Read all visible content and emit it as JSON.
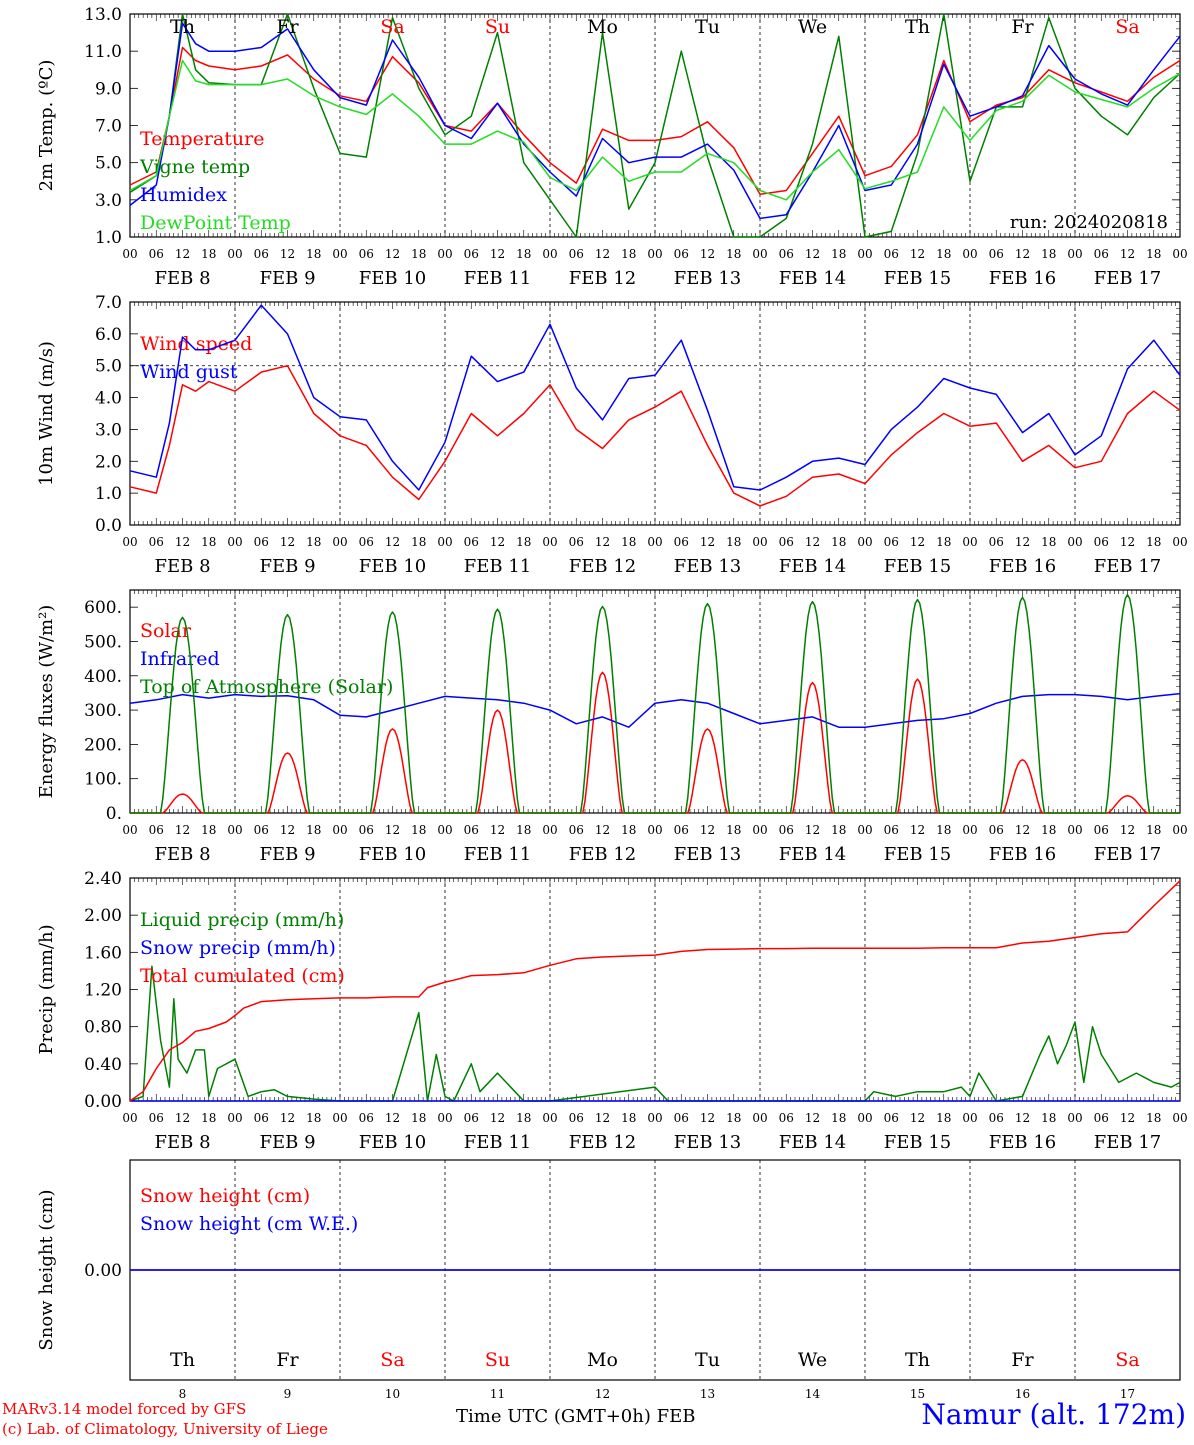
{
  "meta": {
    "run_label": "run: 2024020818"
  },
  "colors": {
    "red": "#ff0000",
    "green": "#008000",
    "blue": "#0000ff",
    "lightgreen": "#22dd22",
    "purple": "#800080",
    "axis": "#000000"
  },
  "days": [
    {
      "abbr": "Th",
      "weekend": false,
      "date": "FEB  8",
      "num": "8"
    },
    {
      "abbr": "Fr",
      "weekend": false,
      "date": "FEB  9",
      "num": "9"
    },
    {
      "abbr": "Sa",
      "weekend": true,
      "date": "FEB 10",
      "num": "10"
    },
    {
      "abbr": "Su",
      "weekend": true,
      "date": "FEB 11",
      "num": "11"
    },
    {
      "abbr": "Mo",
      "weekend": false,
      "date": "FEB 12",
      "num": "12"
    },
    {
      "abbr": "Tu",
      "weekend": false,
      "date": "FEB 13",
      "num": "13"
    },
    {
      "abbr": "We",
      "weekend": false,
      "date": "FEB 14",
      "num": "14"
    },
    {
      "abbr": "Th",
      "weekend": false,
      "date": "FEB 15",
      "num": "15"
    },
    {
      "abbr": "Fr",
      "weekend": false,
      "date": "FEB 16",
      "num": "16"
    },
    {
      "abbr": "Sa",
      "weekend": true,
      "date": "FEB 17",
      "num": "17"
    }
  ],
  "hour_labels": [
    "00",
    "06",
    "12",
    "18"
  ],
  "footer": {
    "credit_line1": "MARv3.14 model forced by GFS",
    "credit_line2": "(c) Lab. of Climatology, University of Liege",
    "x_title": "Time UTC (GMT+0h) FEB",
    "station": "Namur (alt. 172m)"
  },
  "chart_data": [
    {
      "type": "line",
      "ylabel": "2m Temp. (ºC)",
      "ylim": [
        1,
        13
      ],
      "yticks": [
        "1.0",
        "3.0",
        "5.0",
        "7.0",
        "9.0",
        "11.0",
        "13.0"
      ],
      "x_unit": "hours since FEB 8 00 UTC",
      "series": [
        {
          "name": "Temperature",
          "color": "red",
          "x": [
            0,
            6,
            9,
            12,
            15,
            18,
            24,
            30,
            36,
            42,
            48,
            54,
            60,
            66,
            72,
            78,
            84,
            90,
            96,
            102,
            108,
            114,
            120,
            126,
            132,
            138,
            144,
            150,
            156,
            162,
            168,
            174,
            180,
            186,
            192,
            198,
            204,
            210,
            216,
            222,
            228,
            234,
            240
          ],
          "values": [
            3.8,
            4.5,
            7.5,
            11.2,
            10.5,
            10.2,
            10.0,
            10.2,
            10.8,
            9.5,
            8.6,
            8.3,
            10.7,
            9.3,
            7.0,
            6.7,
            8.2,
            6.5,
            5.0,
            3.9,
            6.8,
            6.2,
            6.2,
            6.4,
            7.2,
            5.8,
            3.3,
            3.5,
            5.5,
            7.5,
            4.3,
            4.8,
            6.5,
            10.5,
            7.2,
            8.1,
            8.5,
            10.0,
            9.3,
            8.8,
            8.3,
            9.6,
            10.5
          ]
        },
        {
          "name": "Vigne temp",
          "color": "green",
          "x": [
            0,
            6,
            9,
            12,
            15,
            18,
            24,
            30,
            36,
            42,
            48,
            54,
            60,
            66,
            72,
            78,
            84,
            90,
            96,
            102,
            108,
            114,
            120,
            126,
            132,
            138,
            144,
            150,
            156,
            162,
            168,
            174,
            180,
            186,
            192,
            198,
            204,
            210,
            216,
            222,
            228,
            234,
            240
          ],
          "values": [
            3.4,
            4.3,
            7.5,
            13.0,
            10.0,
            9.3,
            9.2,
            9.2,
            13.0,
            9.0,
            5.5,
            5.3,
            12.8,
            9.0,
            6.5,
            7.5,
            12.0,
            5.0,
            3.0,
            1.0,
            12.0,
            2.5,
            5.0,
            11.0,
            5.3,
            1.0,
            1.0,
            2.0,
            6.0,
            11.8,
            1.0,
            1.3,
            5.5,
            13.0,
            4.0,
            8.0,
            8.0,
            12.8,
            9.0,
            7.5,
            6.5,
            8.5,
            9.8
          ]
        },
        {
          "name": "Humidex",
          "color": "blue",
          "x": [
            0,
            6,
            9,
            12,
            15,
            18,
            24,
            30,
            36,
            42,
            48,
            54,
            60,
            66,
            72,
            78,
            84,
            90,
            96,
            102,
            108,
            114,
            120,
            126,
            132,
            138,
            144,
            150,
            156,
            162,
            168,
            174,
            180,
            186,
            192,
            198,
            204,
            210,
            216,
            222,
            228,
            234,
            240
          ],
          "values": [
            2.7,
            3.8,
            7.5,
            12.5,
            11.4,
            11.0,
            11.0,
            11.2,
            12.2,
            10.0,
            8.5,
            8.1,
            11.6,
            9.6,
            7.0,
            6.3,
            8.2,
            6.0,
            4.5,
            3.2,
            6.3,
            5.0,
            5.3,
            5.3,
            6.0,
            4.6,
            2.0,
            2.2,
            4.5,
            7.0,
            3.5,
            3.8,
            6.0,
            10.3,
            7.5,
            8.0,
            8.6,
            11.3,
            9.5,
            8.7,
            8.1,
            10.0,
            11.8
          ]
        },
        {
          "name": "DewPoint Temp",
          "color": "lightgreen",
          "x": [
            0,
            6,
            9,
            12,
            15,
            18,
            24,
            30,
            36,
            42,
            48,
            54,
            60,
            66,
            72,
            78,
            84,
            90,
            96,
            102,
            108,
            114,
            120,
            126,
            132,
            138,
            144,
            150,
            156,
            162,
            168,
            174,
            180,
            186,
            192,
            198,
            204,
            210,
            216,
            222,
            228,
            234,
            240
          ],
          "values": [
            3.5,
            4.3,
            7.5,
            10.5,
            9.4,
            9.2,
            9.2,
            9.2,
            9.5,
            8.6,
            8.0,
            7.6,
            8.7,
            7.5,
            6.0,
            6.0,
            6.7,
            6.1,
            4.2,
            3.5,
            5.3,
            4.0,
            4.5,
            4.5,
            5.5,
            5.0,
            3.5,
            3.0,
            4.5,
            5.7,
            3.6,
            4.0,
            4.5,
            8.0,
            6.2,
            7.8,
            8.3,
            9.7,
            8.8,
            8.4,
            8.0,
            9.0,
            9.8
          ]
        }
      ]
    },
    {
      "type": "line",
      "ylabel": "10m Wind (m/s)",
      "ylim": [
        0,
        7
      ],
      "yticks": [
        "0.0",
        "1.0",
        "2.0",
        "3.0",
        "4.0",
        "5.0",
        "6.0",
        "7.0"
      ],
      "ref_line": 5,
      "x_unit": "hours since FEB 8 00 UTC",
      "series": [
        {
          "name": "Wind speed",
          "color": "red",
          "x": [
            0,
            6,
            9,
            12,
            15,
            18,
            24,
            30,
            36,
            42,
            48,
            54,
            60,
            66,
            72,
            78,
            84,
            90,
            96,
            102,
            108,
            114,
            120,
            126,
            132,
            138,
            144,
            150,
            156,
            162,
            168,
            174,
            180,
            186,
            192,
            198,
            204,
            210,
            216,
            222,
            228,
            234,
            240
          ],
          "values": [
            1.2,
            1.0,
            2.5,
            4.4,
            4.2,
            4.5,
            4.2,
            4.8,
            5.0,
            3.5,
            2.8,
            2.5,
            1.5,
            0.8,
            2.0,
            3.5,
            2.8,
            3.5,
            4.4,
            3.0,
            2.4,
            3.3,
            3.7,
            4.2,
            2.5,
            1.0,
            0.6,
            0.9,
            1.5,
            1.6,
            1.3,
            2.2,
            2.9,
            3.5,
            3.1,
            3.2,
            2.0,
            2.5,
            1.8,
            2.0,
            3.5,
            4.2,
            3.6
          ]
        },
        {
          "name": "Wind gust",
          "color": "blue",
          "x": [
            0,
            6,
            9,
            12,
            15,
            18,
            24,
            30,
            36,
            42,
            48,
            54,
            60,
            66,
            72,
            78,
            84,
            90,
            96,
            102,
            108,
            114,
            120,
            126,
            132,
            138,
            144,
            150,
            156,
            162,
            168,
            174,
            180,
            186,
            192,
            198,
            204,
            210,
            216,
            222,
            228,
            234,
            240
          ],
          "values": [
            1.7,
            1.5,
            3.2,
            5.9,
            5.5,
            5.5,
            5.8,
            6.9,
            6.0,
            4.0,
            3.4,
            3.3,
            2.0,
            1.1,
            2.6,
            5.3,
            4.5,
            4.8,
            6.3,
            4.3,
            3.3,
            4.6,
            4.7,
            5.8,
            3.6,
            1.2,
            1.1,
            1.5,
            2.0,
            2.1,
            1.9,
            3.0,
            3.7,
            4.6,
            4.3,
            4.1,
            2.9,
            3.5,
            2.2,
            2.8,
            4.9,
            5.8,
            4.7
          ]
        }
      ]
    },
    {
      "type": "line",
      "ylabel": "Energy fluxes (W/m²)",
      "ylim": [
        0,
        650
      ],
      "yticks": [
        "0.",
        "100.",
        "200.",
        "300.",
        "400.",
        "500.",
        "600."
      ],
      "x_unit": "hours since FEB 8 00 UTC",
      "series": [
        {
          "name": "Solar",
          "color": "red",
          "day_peaks": [
            55,
            175,
            245,
            300,
            410,
            245,
            380,
            390,
            155,
            50
          ]
        },
        {
          "name": "Infrared",
          "color": "blue",
          "x": [
            0,
            6,
            12,
            18,
            24,
            30,
            36,
            42,
            48,
            54,
            60,
            66,
            72,
            78,
            84,
            90,
            96,
            102,
            108,
            114,
            120,
            126,
            132,
            138,
            144,
            150,
            156,
            162,
            168,
            174,
            180,
            186,
            192,
            198,
            204,
            210,
            216,
            222,
            228,
            234,
            240
          ],
          "values": [
            320,
            330,
            345,
            335,
            345,
            340,
            342,
            330,
            285,
            280,
            300,
            320,
            340,
            335,
            330,
            320,
            300,
            260,
            280,
            250,
            320,
            330,
            320,
            290,
            260,
            270,
            280,
            250,
            250,
            260,
            270,
            275,
            290,
            320,
            340,
            345,
            345,
            340,
            330,
            340,
            348
          ]
        },
        {
          "name": "Top of Atmosphere (Solar)",
          "color": "green",
          "day_peaks": [
            570,
            578,
            586,
            594,
            602,
            610,
            616,
            622,
            628,
            636
          ]
        }
      ]
    },
    {
      "type": "line",
      "ylabel": "Precip (mm/h)",
      "ylim": [
        0,
        2.4
      ],
      "yticks": [
        "0.00",
        "0.40",
        "0.80",
        "1.20",
        "1.60",
        "2.00",
        "2.40"
      ],
      "x_unit": "hours since FEB 8 00 UTC",
      "series": [
        {
          "name": "Liquid precip (mm/h)",
          "color": "green",
          "x": [
            0,
            3,
            5,
            7,
            9,
            10,
            11,
            13,
            15,
            17,
            18,
            20,
            24,
            27,
            30,
            33,
            36,
            42,
            48,
            54,
            60,
            66,
            68,
            70,
            72,
            74,
            78,
            80,
            84,
            88,
            90,
            96,
            120,
            123,
            126,
            144,
            168,
            170,
            175,
            180,
            186,
            190,
            192,
            194,
            198,
            204,
            208,
            210,
            212,
            214,
            216,
            218,
            220,
            222,
            226,
            230,
            234,
            238,
            240
          ],
          "values": [
            0,
            0.05,
            1.45,
            0.65,
            0.15,
            1.1,
            0.45,
            0.3,
            0.55,
            0.55,
            0.05,
            0.35,
            0.45,
            0.05,
            0.1,
            0.12,
            0.05,
            0.02,
            0,
            0,
            0,
            0.95,
            0,
            0.5,
            0.05,
            0,
            0.4,
            0.1,
            0.3,
            0.1,
            0.0,
            0.0,
            0.15,
            0.0,
            0.0,
            0.0,
            0,
            0.1,
            0.05,
            0.1,
            0.1,
            0.15,
            0.05,
            0.3,
            0.0,
            0.05,
            0.5,
            0.7,
            0.4,
            0.6,
            0.85,
            0.2,
            0.8,
            0.5,
            0.2,
            0.3,
            0.2,
            0.15,
            0.2
          ]
        },
        {
          "name": "Snow precip (mm/h)",
          "color": "blue",
          "x": [
            0,
            240
          ],
          "values": [
            0,
            0
          ]
        },
        {
          "name": "Total cumulated (cm)",
          "color": "red",
          "x": [
            0,
            3,
            6,
            9,
            12,
            15,
            18,
            22,
            24,
            26,
            30,
            36,
            42,
            48,
            54,
            60,
            66,
            68,
            72,
            74,
            78,
            84,
            90,
            96,
            102,
            108,
            114,
            120,
            126,
            132,
            138,
            144,
            150,
            156,
            162,
            168,
            174,
            180,
            186,
            192,
            198,
            204,
            210,
            216,
            222,
            228,
            234,
            240
          ],
          "values": [
            0,
            0.1,
            0.35,
            0.55,
            0.63,
            0.75,
            0.78,
            0.85,
            0.92,
            1.0,
            1.07,
            1.09,
            1.1,
            1.11,
            1.11,
            1.12,
            1.12,
            1.22,
            1.28,
            1.3,
            1.35,
            1.36,
            1.38,
            1.46,
            1.53,
            1.55,
            1.56,
            1.57,
            1.61,
            1.63,
            1.635,
            1.64,
            1.64,
            1.645,
            1.645,
            1.645,
            1.645,
            1.645,
            1.65,
            1.65,
            1.65,
            1.7,
            1.72,
            1.76,
            1.8,
            1.82,
            2.1,
            2.37
          ]
        }
      ]
    },
    {
      "type": "line",
      "ylabel": "Snow height (cm)",
      "yticks": [
        "0.00"
      ],
      "x_unit": "hours since FEB 8 00 UTC",
      "series": [
        {
          "name": "Snow height (cm)",
          "color": "red",
          "x": [
            0,
            240
          ],
          "values": [
            0,
            0
          ]
        },
        {
          "name": "Snow height (cm W.E.)",
          "color": "blue",
          "x": [
            0,
            240
          ],
          "values": [
            0,
            0
          ]
        }
      ]
    }
  ]
}
